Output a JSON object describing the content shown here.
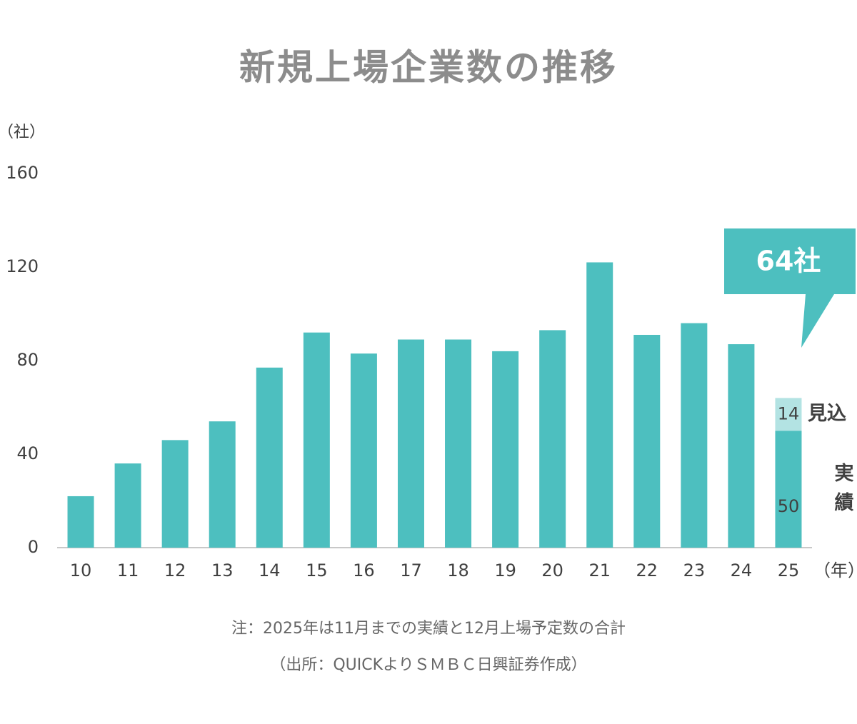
{
  "chart_data": {
    "type": "stacked_bar",
    "title": "新規上場企業数の推移",
    "y_label": "（社）",
    "x_label": "（年）",
    "annotation": "64社",
    "notes": [
      "注：2025年は11月までの実績と12月上場予定数の合計",
      "（出所：QUICKよりＳＭＢＣ日興証券作成）"
    ],
    "categories": [
      "10",
      "11",
      "12",
      "13",
      "14",
      "15",
      "16",
      "17",
      "18",
      "19",
      "20",
      "21",
      "22",
      "23",
      "24",
      "25"
    ],
    "series": [
      {
        "name": "実績",
        "color": "#4dbfbf",
        "values": [
          22,
          36,
          46,
          54,
          77,
          92,
          83,
          89,
          89,
          84,
          93,
          122,
          91,
          96,
          87,
          50
        ]
      },
      {
        "name": "見込",
        "color": "#b3e3e3",
        "values": [
          null,
          null,
          null,
          null,
          null,
          null,
          null,
          null,
          null,
          null,
          null,
          null,
          null,
          null,
          null,
          14
        ]
      }
    ],
    "ylim": [
      0,
      160
    ],
    "yticks": [
      0,
      40,
      80,
      120,
      160
    ],
    "grid": false
  }
}
